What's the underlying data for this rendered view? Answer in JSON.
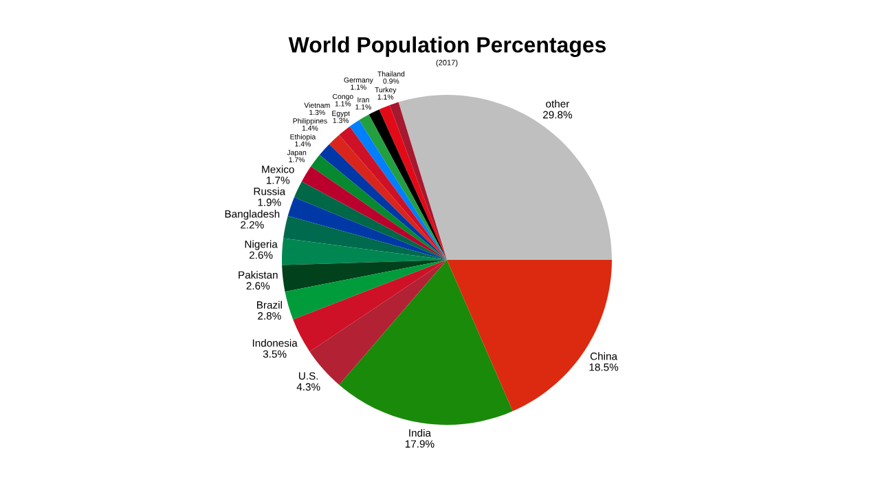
{
  "chart_data": {
    "type": "pie",
    "title": "World Population Percentages",
    "subtitle": "(2017)",
    "categories": [
      "other",
      "Thailand",
      "Turkey",
      "Germany",
      "Iran",
      "Congo",
      "Egypt",
      "Vietnam",
      "Philippines",
      "Ethiopia",
      "Japan",
      "Mexico",
      "Russia",
      "Bangladesh",
      "Nigeria",
      "Pakistan",
      "Brazil",
      "Indonesia",
      "U.S.",
      "India",
      "China"
    ],
    "values": [
      29.8,
      0.9,
      1.1,
      1.1,
      1.1,
      1.1,
      1.3,
      1.3,
      1.4,
      1.4,
      1.7,
      1.7,
      1.9,
      2.2,
      2.6,
      2.6,
      2.8,
      3.5,
      4.3,
      17.9,
      18.5
    ],
    "value_labels": [
      "29.8%",
      "0.9%",
      "1.1%",
      "1.1%",
      "1.1%",
      "1.1%",
      "1.3%",
      "1.3%",
      "1.4%",
      "1.4%",
      "1.7%",
      "1.7%",
      "1.9%",
      "2.2%",
      "2.6%",
      "2.6%",
      "2.8%",
      "3.5%",
      "4.3%",
      "17.9%",
      "18.5%"
    ],
    "colors": [
      "#bfbfbf",
      "#a51931",
      "#e30a17",
      "#000000",
      "#239f40",
      "#007fff",
      "#ce1126",
      "#da251d",
      "#0038a8",
      "#078930",
      "#bc002d",
      "#006847",
      "#0039a6",
      "#006a4e",
      "#008751",
      "#01411c",
      "#009c3b",
      "#ce1126",
      "#b22234",
      "#1a8a0a",
      "#dc2a10"
    ]
  }
}
